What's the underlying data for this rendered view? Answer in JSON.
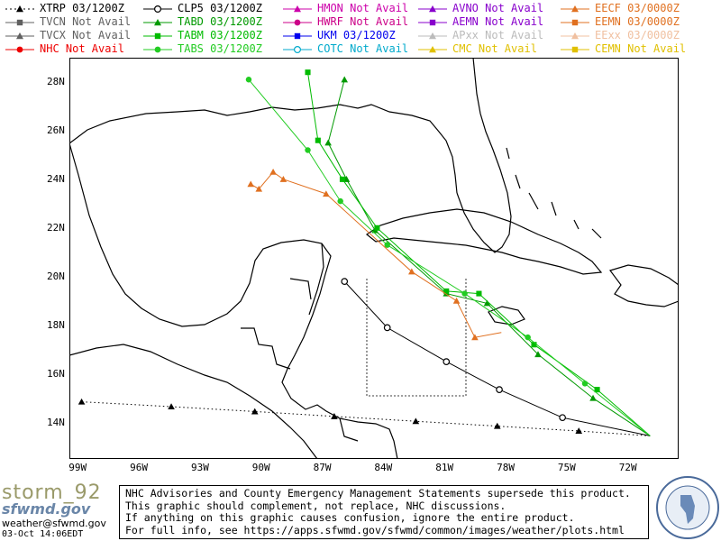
{
  "legend": [
    {
      "label": "XTRP 03/1200Z",
      "color": "#000000",
      "marker": "triangle",
      "dash": true
    },
    {
      "label": "CLP5 03/1200Z",
      "color": "#000000",
      "marker": "circle-open",
      "dash": false
    },
    {
      "label": "HMON Not Avail",
      "color": "#cc00aa",
      "marker": "triangle",
      "dash": false
    },
    {
      "label": "AVNO Not Avail",
      "color": "#8800cc",
      "marker": "triangle",
      "dash": false
    },
    {
      "label": "EECF 03/0000Z",
      "color": "#e07020",
      "marker": "triangle",
      "dash": false
    },
    {
      "label": "TVCN Not Avail",
      "color": "#606060",
      "marker": "square",
      "dash": false
    },
    {
      "label": "TABD 03/1200Z",
      "color": "#009900",
      "marker": "triangle",
      "dash": false
    },
    {
      "label": "HWRF Not Avail",
      "color": "#cc0088",
      "marker": "circle",
      "dash": false
    },
    {
      "label": "AEMN Not Avail",
      "color": "#8800cc",
      "marker": "square",
      "dash": false
    },
    {
      "label": "EEMN 03/0000Z",
      "color": "#e07020",
      "marker": "square",
      "dash": false
    },
    {
      "label": "TVCX Not Avail",
      "color": "#606060",
      "marker": "triangle",
      "dash": false
    },
    {
      "label": "TABM 03/1200Z",
      "color": "#00bb00",
      "marker": "square",
      "dash": false
    },
    {
      "label": "UKM  03/1200Z",
      "color": "#0000ee",
      "marker": "square",
      "dash": false
    },
    {
      "label": "APxx  Not Avail",
      "color": "#bbbbbb",
      "marker": "triangle",
      "dash": false
    },
    {
      "label": "EExx  03/0000Z",
      "color": "#f0c0a0",
      "marker": "triangle",
      "dash": false
    },
    {
      "label": "NHC Not Avail",
      "color": "#ee0000",
      "marker": "circle",
      "dash": false
    },
    {
      "label": "TABS 03/1200Z",
      "color": "#22cc22",
      "marker": "circle",
      "dash": false
    },
    {
      "label": "COTC Not Avail",
      "color": "#00aacc",
      "marker": "circle-open",
      "dash": false
    },
    {
      "label": "CMC  Not Avail",
      "color": "#e0c000",
      "marker": "triangle",
      "dash": false
    },
    {
      "label": "CEMN Not Avail",
      "color": "#e0c000",
      "marker": "square",
      "dash": false
    }
  ],
  "axes": {
    "lon_labels": [
      "99W",
      "96W",
      "93W",
      "90W",
      "87W",
      "84W",
      "81W",
      "78W",
      "75W",
      "72W"
    ],
    "lat_labels": [
      "28N",
      "26N",
      "24N",
      "22N",
      "20N",
      "18N",
      "16N",
      "14N"
    ]
  },
  "footer": {
    "logo": "storm_92",
    "logo_sub": "sfwmd.gov",
    "email": "weather@sfwmd.gov",
    "timestamp": "03-Oct 14:06EDT",
    "notice_lines": [
      "NHC Advisories and County Emergency Management Statements supersede this product.",
      "This graphic should complement, not replace, NHC discussions.",
      "If anything on this graphic causes confusion, ignore the entire product.",
      "For full info, see  https://apps.sfwmd.gov/sfwmd/common/images/weather/plots.html"
    ]
  },
  "chart_data": {
    "type": "line",
    "x_axis": "longitude",
    "y_axis": "latitude",
    "xlim": [
      -99.5,
      -69.6
    ],
    "ylim": [
      12.5,
      29.0
    ],
    "series": [
      {
        "name": "XTRP",
        "color": "#000000",
        "marker": "triangle",
        "dash": true,
        "points": [
          [
            -71.0,
            13.45
          ],
          [
            -74.5,
            13.65
          ],
          [
            -78.5,
            13.85
          ],
          [
            -82.5,
            14.05
          ],
          [
            -86.5,
            14.25
          ],
          [
            -90.4,
            14.45
          ],
          [
            -94.5,
            14.65
          ],
          [
            -98.9,
            14.85
          ]
        ]
      },
      {
        "name": "CLP5",
        "color": "#000000",
        "marker": "circle-open",
        "dash": false,
        "points": [
          [
            -71.0,
            13.45
          ],
          [
            -75.3,
            14.2
          ],
          [
            -78.4,
            15.35
          ],
          [
            -81.0,
            16.5
          ],
          [
            -83.9,
            17.9
          ],
          [
            -86.0,
            19.8
          ]
        ]
      },
      {
        "name": "TABD",
        "color": "#009900",
        "marker": "triangle",
        "dash": false,
        "points": [
          [
            -71.0,
            13.45
          ],
          [
            -73.8,
            15.0
          ],
          [
            -76.5,
            16.8
          ],
          [
            -79.0,
            18.9
          ],
          [
            -81.0,
            19.3
          ],
          [
            -84.5,
            21.9
          ],
          [
            -85.9,
            24.0
          ],
          [
            -86.8,
            25.5
          ],
          [
            -86.0,
            28.1
          ]
        ]
      },
      {
        "name": "TABM",
        "color": "#00bb00",
        "marker": "square",
        "dash": false,
        "points": [
          [
            -71.0,
            13.45
          ],
          [
            -73.6,
            15.35
          ],
          [
            -76.7,
            17.2
          ],
          [
            -79.4,
            19.3
          ],
          [
            -81.0,
            19.4
          ],
          [
            -84.4,
            22.0
          ],
          [
            -86.1,
            24.0
          ],
          [
            -87.3,
            25.6
          ],
          [
            -87.8,
            28.4
          ]
        ]
      },
      {
        "name": "TABS",
        "color": "#22cc22",
        "marker": "circle",
        "dash": false,
        "points": [
          [
            -71.0,
            13.45
          ],
          [
            -74.2,
            15.6
          ],
          [
            -77.0,
            17.5
          ],
          [
            -80.1,
            19.3
          ],
          [
            -83.9,
            21.3
          ],
          [
            -86.2,
            23.1
          ],
          [
            -87.8,
            25.2
          ],
          [
            -90.7,
            28.1
          ]
        ]
      },
      {
        "name": "EECF",
        "color": "#e07020",
        "marker": "triangle",
        "dash": false,
        "points": [
          [
            -78.3,
            17.7
          ],
          [
            -79.6,
            17.5
          ],
          [
            -80.5,
            19.0
          ],
          [
            -82.7,
            20.2
          ],
          [
            -86.9,
            23.4
          ],
          [
            -89.0,
            24.0
          ],
          [
            -89.5,
            24.3
          ],
          [
            -90.2,
            23.6
          ],
          [
            -90.6,
            23.8
          ]
        ]
      }
    ]
  }
}
